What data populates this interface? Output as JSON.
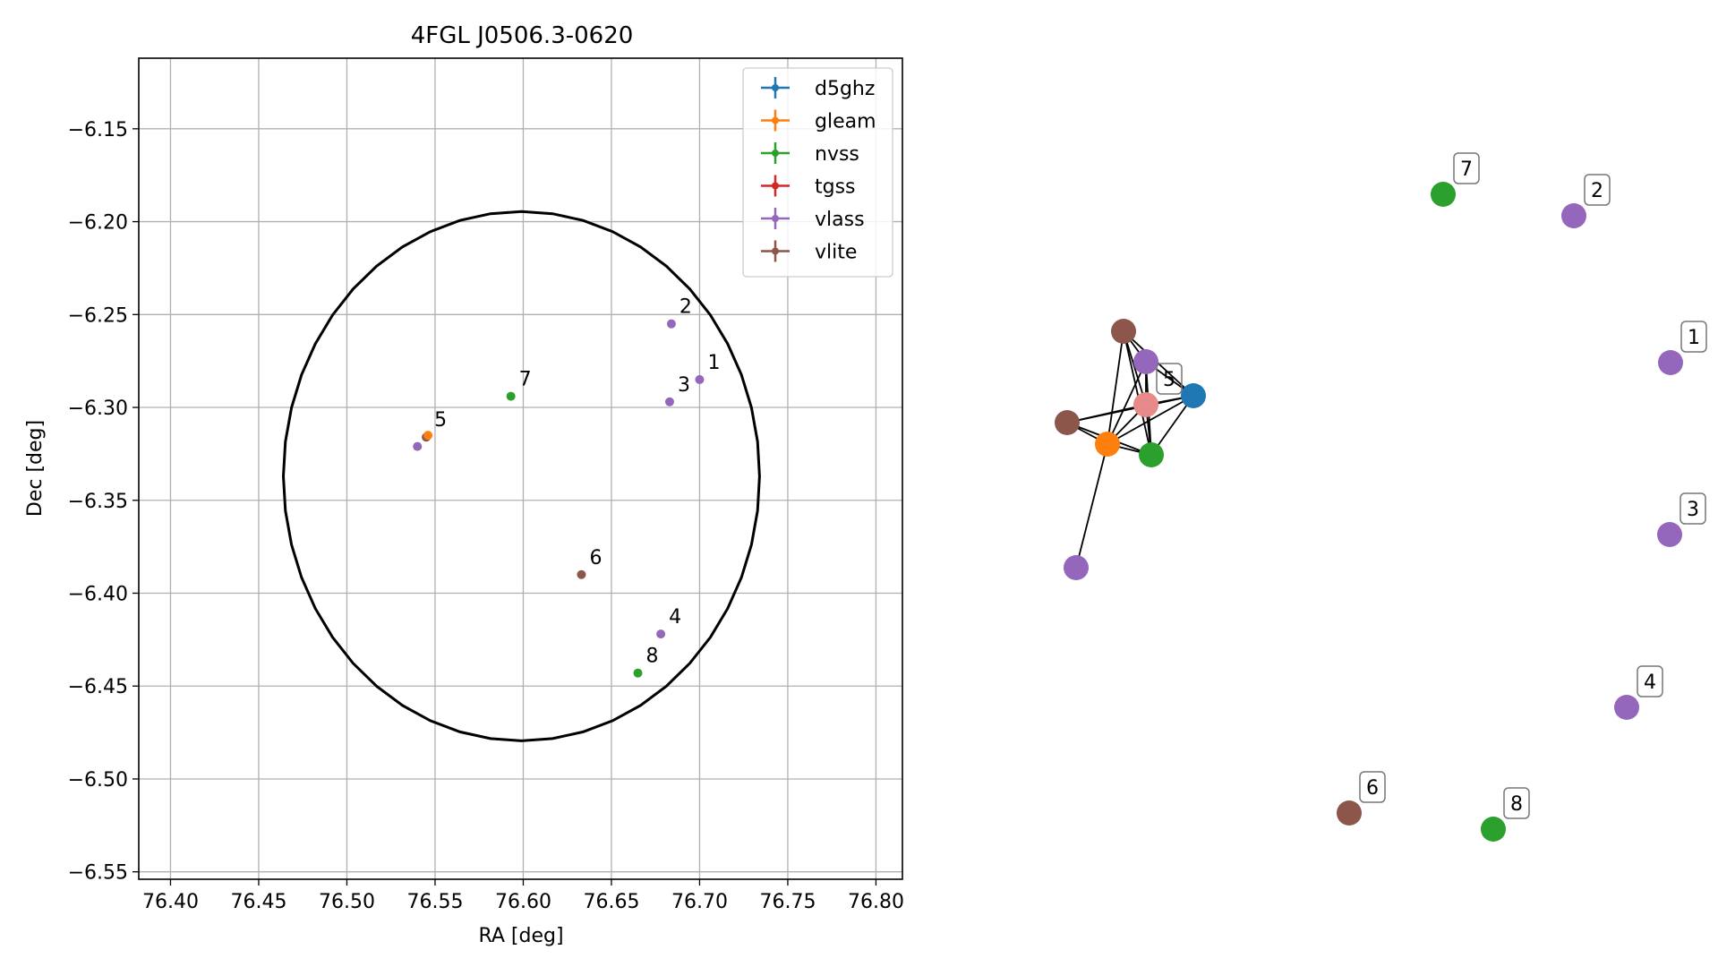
{
  "chart_data": [
    {
      "type": "scatter",
      "title": "4FGL J0506.3-0620",
      "xlabel": "RA [deg]",
      "ylabel": "Dec [deg]",
      "xlim": [
        76.382,
        76.815
      ],
      "ylim": [
        -6.554,
        -6.112
      ],
      "xticks": [
        "76.40",
        "76.45",
        "76.50",
        "76.55",
        "76.60",
        "76.65",
        "76.70",
        "76.75",
        "76.80"
      ],
      "yticks": [
        "−6.15",
        "−6.20",
        "−6.25",
        "−6.30",
        "−6.35",
        "−6.40",
        "−6.45",
        "−6.50",
        "−6.55"
      ],
      "grid": true,
      "legend_position": "top-right",
      "legend": [
        {
          "label": "d5ghz",
          "color": "#1f77b4"
        },
        {
          "label": "gleam",
          "color": "#ff7f0e"
        },
        {
          "label": "nvss",
          "color": "#2ca02c"
        },
        {
          "label": "tgss",
          "color": "#d62728"
        },
        {
          "label": "vlass",
          "color": "#9467bd"
        },
        {
          "label": "vlite",
          "color": "#8c564b"
        }
      ],
      "error_ellipse": {
        "center_ra": 76.599,
        "center_dec": -6.337,
        "semi_ra": 0.135,
        "semi_dec": 0.1425
      },
      "points": [
        {
          "label": "1",
          "survey": "vlass",
          "color": "#9467bd",
          "ra": 76.7,
          "dec": -6.285
        },
        {
          "label": "2",
          "survey": "vlass",
          "color": "#9467bd",
          "ra": 76.684,
          "dec": -6.255
        },
        {
          "label": "3",
          "survey": "vlass",
          "color": "#9467bd",
          "ra": 76.683,
          "dec": -6.297
        },
        {
          "label": "4",
          "survey": "vlass",
          "color": "#9467bd",
          "ra": 76.678,
          "dec": -6.422
        },
        {
          "label": "5",
          "survey": "vlite",
          "color": "#8c564b",
          "ra": 76.545,
          "dec": -6.316
        },
        {
          "label": "",
          "survey": "vlass",
          "color": "#9467bd",
          "ra": 76.54,
          "dec": -6.321
        },
        {
          "label": "",
          "survey": "gleam",
          "color": "#ff7f0e",
          "ra": 76.546,
          "dec": -6.315
        },
        {
          "label": "6",
          "survey": "vlite",
          "color": "#8c564b",
          "ra": 76.633,
          "dec": -6.39
        },
        {
          "label": "7",
          "survey": "nvss",
          "color": "#2ca02c",
          "ra": 76.593,
          "dec": -6.294
        },
        {
          "label": "8",
          "survey": "nvss",
          "color": "#2ca02c",
          "ra": 76.665,
          "dec": -6.443
        }
      ]
    },
    {
      "type": "network",
      "nodes": [
        {
          "id": "n7",
          "label": "7",
          "color": "#2ca02c"
        },
        {
          "id": "n2",
          "label": "2",
          "color": "#9467bd"
        },
        {
          "id": "n1",
          "label": "1",
          "color": "#9467bd"
        },
        {
          "id": "n3",
          "label": "3",
          "color": "#9467bd"
        },
        {
          "id": "n4",
          "label": "4",
          "color": "#9467bd"
        },
        {
          "id": "n6",
          "label": "6",
          "color": "#8c564b"
        },
        {
          "id": "n8",
          "label": "8",
          "color": "#2ca02c"
        },
        {
          "id": "c_vlite_top",
          "label": "",
          "color": "#8c564b"
        },
        {
          "id": "c_vlass_top",
          "label": "",
          "color": "#9467bd"
        },
        {
          "id": "c_d5ghz",
          "label": "",
          "color": "#1f77b4"
        },
        {
          "id": "c_tgss",
          "label": "5",
          "color": "#e8898a"
        },
        {
          "id": "c_vlite_left",
          "label": "",
          "color": "#8c564b"
        },
        {
          "id": "c_gleam",
          "label": "",
          "color": "#ff7f0e"
        },
        {
          "id": "c_nvss",
          "label": "",
          "color": "#2ca02c"
        },
        {
          "id": "c_vlass_bottom",
          "label": "",
          "color": "#9467bd"
        }
      ],
      "edges": [
        [
          "c_vlite_top",
          "c_vlass_top"
        ],
        [
          "c_vlite_top",
          "c_d5ghz"
        ],
        [
          "c_vlite_top",
          "c_gleam"
        ],
        [
          "c_vlite_top",
          "c_nvss"
        ],
        [
          "c_vlite_top",
          "c_tgss"
        ],
        [
          "c_vlass_top",
          "c_d5ghz"
        ],
        [
          "c_vlass_top",
          "c_gleam"
        ],
        [
          "c_vlass_top",
          "c_nvss"
        ],
        [
          "c_vlass_top",
          "c_tgss"
        ],
        [
          "c_d5ghz",
          "c_gleam"
        ],
        [
          "c_d5ghz",
          "c_nvss"
        ],
        [
          "c_d5ghz",
          "c_tgss"
        ],
        [
          "c_d5ghz",
          "c_vlite_left"
        ],
        [
          "c_tgss",
          "c_gleam"
        ],
        [
          "c_tgss",
          "c_nvss"
        ],
        [
          "c_tgss",
          "c_vlite_left"
        ],
        [
          "c_vlite_left",
          "c_gleam"
        ],
        [
          "c_vlite_left",
          "c_nvss"
        ],
        [
          "c_gleam",
          "c_nvss"
        ],
        [
          "c_gleam",
          "c_vlass_bottom"
        ]
      ]
    }
  ]
}
